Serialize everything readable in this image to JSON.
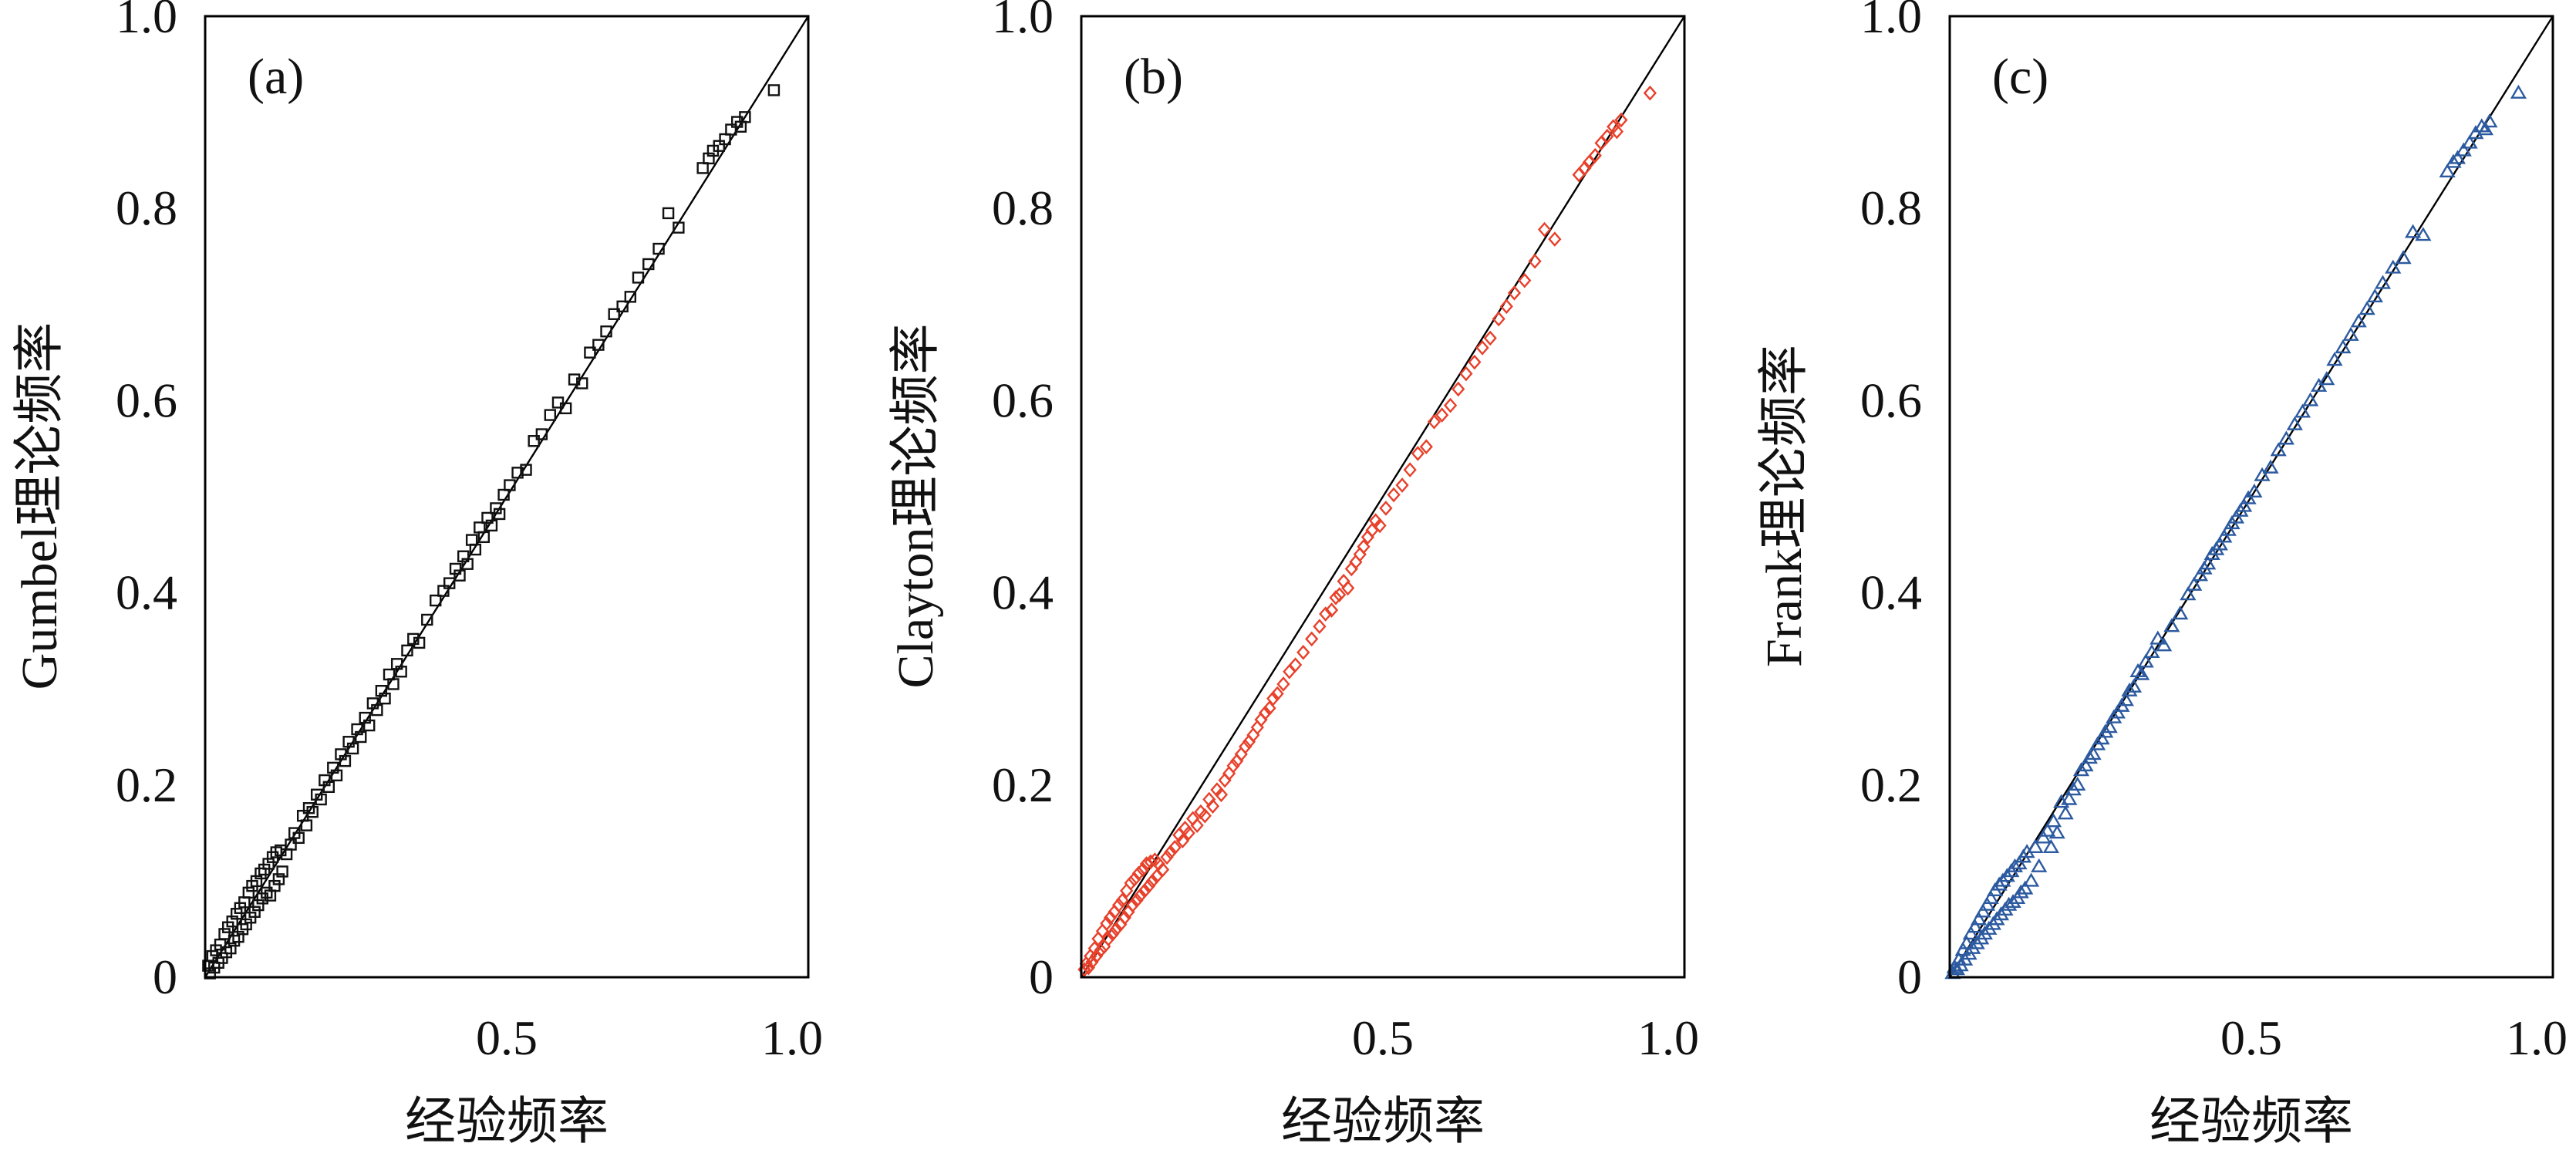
{
  "chart_data": [
    {
      "type": "scatter",
      "panel_label": "(a)",
      "xlabel": "经验频率",
      "ylabel": "Gumbel理论频率",
      "xlim": [
        0,
        1.0
      ],
      "ylim": [
        0,
        1.0
      ],
      "xticks": [
        0.5,
        1.0
      ],
      "xtick_labels": [
        "0.5",
        "1.0"
      ],
      "yticks": [
        0,
        0.2,
        0.4,
        0.6,
        0.8,
        1.0
      ],
      "ytick_labels": [
        "0",
        "0.2",
        "0.4",
        "0.6",
        "0.8",
        "1.0"
      ],
      "grid": false,
      "legend": false,
      "marker": "square",
      "color": "#111111",
      "reference_line": {
        "from": [
          0,
          0
        ],
        "to": [
          1.0,
          1.0
        ],
        "color": "#000000"
      },
      "x": [
        0.005,
        0.008,
        0.012,
        0.015,
        0.018,
        0.022,
        0.025,
        0.028,
        0.032,
        0.035,
        0.038,
        0.042,
        0.045,
        0.048,
        0.052,
        0.055,
        0.058,
        0.062,
        0.065,
        0.068,
        0.072,
        0.075,
        0.078,
        0.082,
        0.085,
        0.088,
        0.092,
        0.095,
        0.098,
        0.102,
        0.105,
        0.108,
        0.112,
        0.115,
        0.118,
        0.122,
        0.125,
        0.128,
        0.135,
        0.142,
        0.148,
        0.155,
        0.162,
        0.168,
        0.172,
        0.178,
        0.185,
        0.192,
        0.198,
        0.205,
        0.212,
        0.218,
        0.225,
        0.232,
        0.238,
        0.245,
        0.252,
        0.258,
        0.265,
        0.272,
        0.278,
        0.285,
        0.292,
        0.298,
        0.305,
        0.312,
        0.318,
        0.325,
        0.335,
        0.345,
        0.355,
        0.368,
        0.382,
        0.395,
        0.405,
        0.415,
        0.422,
        0.428,
        0.435,
        0.442,
        0.448,
        0.455,
        0.462,
        0.468,
        0.475,
        0.482,
        0.488,
        0.495,
        0.505,
        0.518,
        0.532,
        0.545,
        0.558,
        0.572,
        0.585,
        0.598,
        0.612,
        0.625,
        0.638,
        0.652,
        0.665,
        0.678,
        0.692,
        0.705,
        0.718,
        0.735,
        0.752,
        0.768,
        0.785,
        0.825,
        0.835,
        0.842,
        0.852,
        0.862,
        0.872,
        0.882,
        0.888,
        0.895,
        0.943
      ],
      "y": [
        0.012,
        0.004,
        0.022,
        0.01,
        0.028,
        0.015,
        0.034,
        0.02,
        0.045,
        0.026,
        0.052,
        0.03,
        0.058,
        0.038,
        0.066,
        0.042,
        0.072,
        0.05,
        0.078,
        0.055,
        0.088,
        0.062,
        0.095,
        0.068,
        0.1,
        0.075,
        0.108,
        0.082,
        0.112,
        0.088,
        0.118,
        0.085,
        0.125,
        0.095,
        0.13,
        0.102,
        0.132,
        0.11,
        0.128,
        0.138,
        0.15,
        0.145,
        0.168,
        0.158,
        0.176,
        0.172,
        0.19,
        0.185,
        0.205,
        0.198,
        0.218,
        0.21,
        0.232,
        0.225,
        0.245,
        0.238,
        0.258,
        0.25,
        0.27,
        0.262,
        0.285,
        0.278,
        0.298,
        0.29,
        0.315,
        0.305,
        0.326,
        0.318,
        0.34,
        0.352,
        0.348,
        0.372,
        0.392,
        0.402,
        0.41,
        0.425,
        0.418,
        0.438,
        0.43,
        0.455,
        0.445,
        0.468,
        0.458,
        0.478,
        0.47,
        0.488,
        0.482,
        0.502,
        0.512,
        0.525,
        0.528,
        0.558,
        0.565,
        0.585,
        0.598,
        0.592,
        0.622,
        0.618,
        0.65,
        0.658,
        0.672,
        0.69,
        0.698,
        0.708,
        0.728,
        0.742,
        0.758,
        0.795,
        0.78,
        0.842,
        0.852,
        0.86,
        0.865,
        0.872,
        0.882,
        0.89,
        0.885,
        0.895,
        0.923
      ]
    },
    {
      "type": "scatter",
      "panel_label": "(b)",
      "xlabel": "经验频率",
      "ylabel": "Clayton理论频率",
      "xlim": [
        0,
        1.0
      ],
      "ylim": [
        0,
        1.0
      ],
      "xticks": [
        0.5,
        1.0
      ],
      "xtick_labels": [
        "0.5",
        "1.0"
      ],
      "yticks": [
        0,
        0.2,
        0.4,
        0.6,
        0.8,
        1.0
      ],
      "ytick_labels": [
        "0",
        "0.2",
        "0.4",
        "0.6",
        "0.8",
        "1.0"
      ],
      "grid": false,
      "legend": false,
      "marker": "diamond",
      "color": "#e8402a",
      "reference_line": {
        "from": [
          0,
          0
        ],
        "to": [
          1.0,
          1.0
        ],
        "color": "#000000"
      },
      "x": [
        0.005,
        0.008,
        0.012,
        0.015,
        0.018,
        0.022,
        0.025,
        0.028,
        0.032,
        0.035,
        0.038,
        0.042,
        0.045,
        0.048,
        0.052,
        0.055,
        0.058,
        0.062,
        0.065,
        0.068,
        0.072,
        0.075,
        0.078,
        0.082,
        0.085,
        0.088,
        0.092,
        0.095,
        0.098,
        0.102,
        0.105,
        0.108,
        0.112,
        0.115,
        0.118,
        0.122,
        0.125,
        0.128,
        0.135,
        0.142,
        0.148,
        0.155,
        0.162,
        0.168,
        0.172,
        0.178,
        0.185,
        0.192,
        0.198,
        0.205,
        0.212,
        0.218,
        0.225,
        0.232,
        0.238,
        0.245,
        0.252,
        0.258,
        0.265,
        0.272,
        0.278,
        0.285,
        0.292,
        0.298,
        0.305,
        0.312,
        0.318,
        0.325,
        0.335,
        0.345,
        0.355,
        0.368,
        0.382,
        0.395,
        0.405,
        0.415,
        0.422,
        0.428,
        0.435,
        0.442,
        0.448,
        0.455,
        0.462,
        0.468,
        0.475,
        0.482,
        0.488,
        0.495,
        0.505,
        0.518,
        0.532,
        0.545,
        0.558,
        0.572,
        0.585,
        0.598,
        0.612,
        0.625,
        0.638,
        0.652,
        0.665,
        0.678,
        0.692,
        0.705,
        0.718,
        0.735,
        0.752,
        0.768,
        0.785,
        0.825,
        0.835,
        0.842,
        0.852,
        0.862,
        0.872,
        0.882,
        0.888,
        0.895,
        0.943
      ],
      "y": [
        0.008,
        0.014,
        0.01,
        0.022,
        0.016,
        0.03,
        0.022,
        0.04,
        0.028,
        0.048,
        0.032,
        0.056,
        0.04,
        0.062,
        0.045,
        0.068,
        0.05,
        0.075,
        0.055,
        0.08,
        0.062,
        0.09,
        0.068,
        0.098,
        0.075,
        0.102,
        0.08,
        0.108,
        0.085,
        0.112,
        0.09,
        0.118,
        0.095,
        0.12,
        0.1,
        0.122,
        0.105,
        0.118,
        0.112,
        0.125,
        0.13,
        0.135,
        0.148,
        0.142,
        0.155,
        0.15,
        0.165,
        0.158,
        0.172,
        0.168,
        0.185,
        0.178,
        0.195,
        0.19,
        0.205,
        0.212,
        0.22,
        0.225,
        0.232,
        0.24,
        0.245,
        0.252,
        0.26,
        0.268,
        0.275,
        0.28,
        0.29,
        0.295,
        0.305,
        0.318,
        0.325,
        0.338,
        0.352,
        0.365,
        0.378,
        0.382,
        0.395,
        0.398,
        0.412,
        0.405,
        0.425,
        0.432,
        0.44,
        0.448,
        0.458,
        0.465,
        0.475,
        0.47,
        0.488,
        0.502,
        0.512,
        0.528,
        0.545,
        0.552,
        0.578,
        0.585,
        0.595,
        0.612,
        0.628,
        0.64,
        0.655,
        0.665,
        0.685,
        0.698,
        0.712,
        0.725,
        0.745,
        0.778,
        0.768,
        0.835,
        0.842,
        0.848,
        0.855,
        0.868,
        0.875,
        0.885,
        0.88,
        0.892,
        0.92
      ]
    },
    {
      "type": "scatter",
      "panel_label": "(c)",
      "xlabel": "经验频率",
      "ylabel": "Frank理论频率",
      "xlim": [
        0,
        1.0
      ],
      "ylim": [
        0,
        1.0
      ],
      "xticks": [
        0.5,
        1.0
      ],
      "xtick_labels": [
        "0.5",
        "1.0"
      ],
      "yticks": [
        0,
        0.2,
        0.4,
        0.6,
        0.8,
        1.0
      ],
      "ytick_labels": [
        "0",
        "0.2",
        "0.4",
        "0.6",
        "0.8",
        "1.0"
      ],
      "grid": false,
      "legend": false,
      "marker": "triangle",
      "color": "#2c5aa0",
      "reference_line": {
        "from": [
          0,
          0
        ],
        "to": [
          1.0,
          1.0
        ],
        "color": "#000000"
      },
      "x": [
        0.005,
        0.008,
        0.012,
        0.015,
        0.018,
        0.022,
        0.025,
        0.028,
        0.032,
        0.035,
        0.038,
        0.042,
        0.045,
        0.048,
        0.052,
        0.055,
        0.058,
        0.062,
        0.065,
        0.068,
        0.072,
        0.075,
        0.078,
        0.082,
        0.085,
        0.088,
        0.092,
        0.095,
        0.098,
        0.102,
        0.105,
        0.108,
        0.112,
        0.115,
        0.118,
        0.122,
        0.125,
        0.128,
        0.135,
        0.142,
        0.148,
        0.155,
        0.162,
        0.168,
        0.172,
        0.178,
        0.185,
        0.192,
        0.198,
        0.205,
        0.212,
        0.218,
        0.225,
        0.232,
        0.238,
        0.245,
        0.252,
        0.258,
        0.265,
        0.272,
        0.278,
        0.285,
        0.292,
        0.298,
        0.305,
        0.312,
        0.318,
        0.325,
        0.335,
        0.345,
        0.355,
        0.368,
        0.382,
        0.395,
        0.405,
        0.415,
        0.422,
        0.428,
        0.435,
        0.442,
        0.448,
        0.455,
        0.462,
        0.468,
        0.475,
        0.482,
        0.488,
        0.495,
        0.505,
        0.518,
        0.532,
        0.545,
        0.558,
        0.572,
        0.585,
        0.598,
        0.612,
        0.625,
        0.638,
        0.652,
        0.665,
        0.678,
        0.692,
        0.705,
        0.718,
        0.735,
        0.752,
        0.768,
        0.785,
        0.825,
        0.835,
        0.842,
        0.852,
        0.862,
        0.872,
        0.882,
        0.888,
        0.895,
        0.943
      ],
      "y": [
        0.004,
        0.01,
        0.008,
        0.018,
        0.012,
        0.028,
        0.018,
        0.035,
        0.024,
        0.045,
        0.03,
        0.052,
        0.035,
        0.06,
        0.04,
        0.068,
        0.045,
        0.075,
        0.05,
        0.082,
        0.055,
        0.09,
        0.06,
        0.096,
        0.065,
        0.1,
        0.07,
        0.105,
        0.075,
        0.11,
        0.078,
        0.115,
        0.082,
        0.118,
        0.088,
        0.125,
        0.092,
        0.13,
        0.1,
        0.135,
        0.115,
        0.145,
        0.152,
        0.135,
        0.162,
        0.15,
        0.182,
        0.17,
        0.185,
        0.195,
        0.2,
        0.215,
        0.22,
        0.228,
        0.232,
        0.242,
        0.248,
        0.255,
        0.26,
        0.27,
        0.275,
        0.282,
        0.288,
        0.298,
        0.302,
        0.318,
        0.315,
        0.328,
        0.338,
        0.352,
        0.345,
        0.365,
        0.378,
        0.398,
        0.408,
        0.418,
        0.425,
        0.43,
        0.44,
        0.445,
        0.45,
        0.458,
        0.465,
        0.472,
        0.478,
        0.485,
        0.49,
        0.498,
        0.505,
        0.522,
        0.53,
        0.548,
        0.56,
        0.575,
        0.588,
        0.6,
        0.615,
        0.622,
        0.642,
        0.655,
        0.668,
        0.682,
        0.695,
        0.708,
        0.722,
        0.738,
        0.748,
        0.775,
        0.772,
        0.838,
        0.848,
        0.852,
        0.86,
        0.868,
        0.878,
        0.885,
        0.882,
        0.89,
        0.92
      ]
    }
  ]
}
